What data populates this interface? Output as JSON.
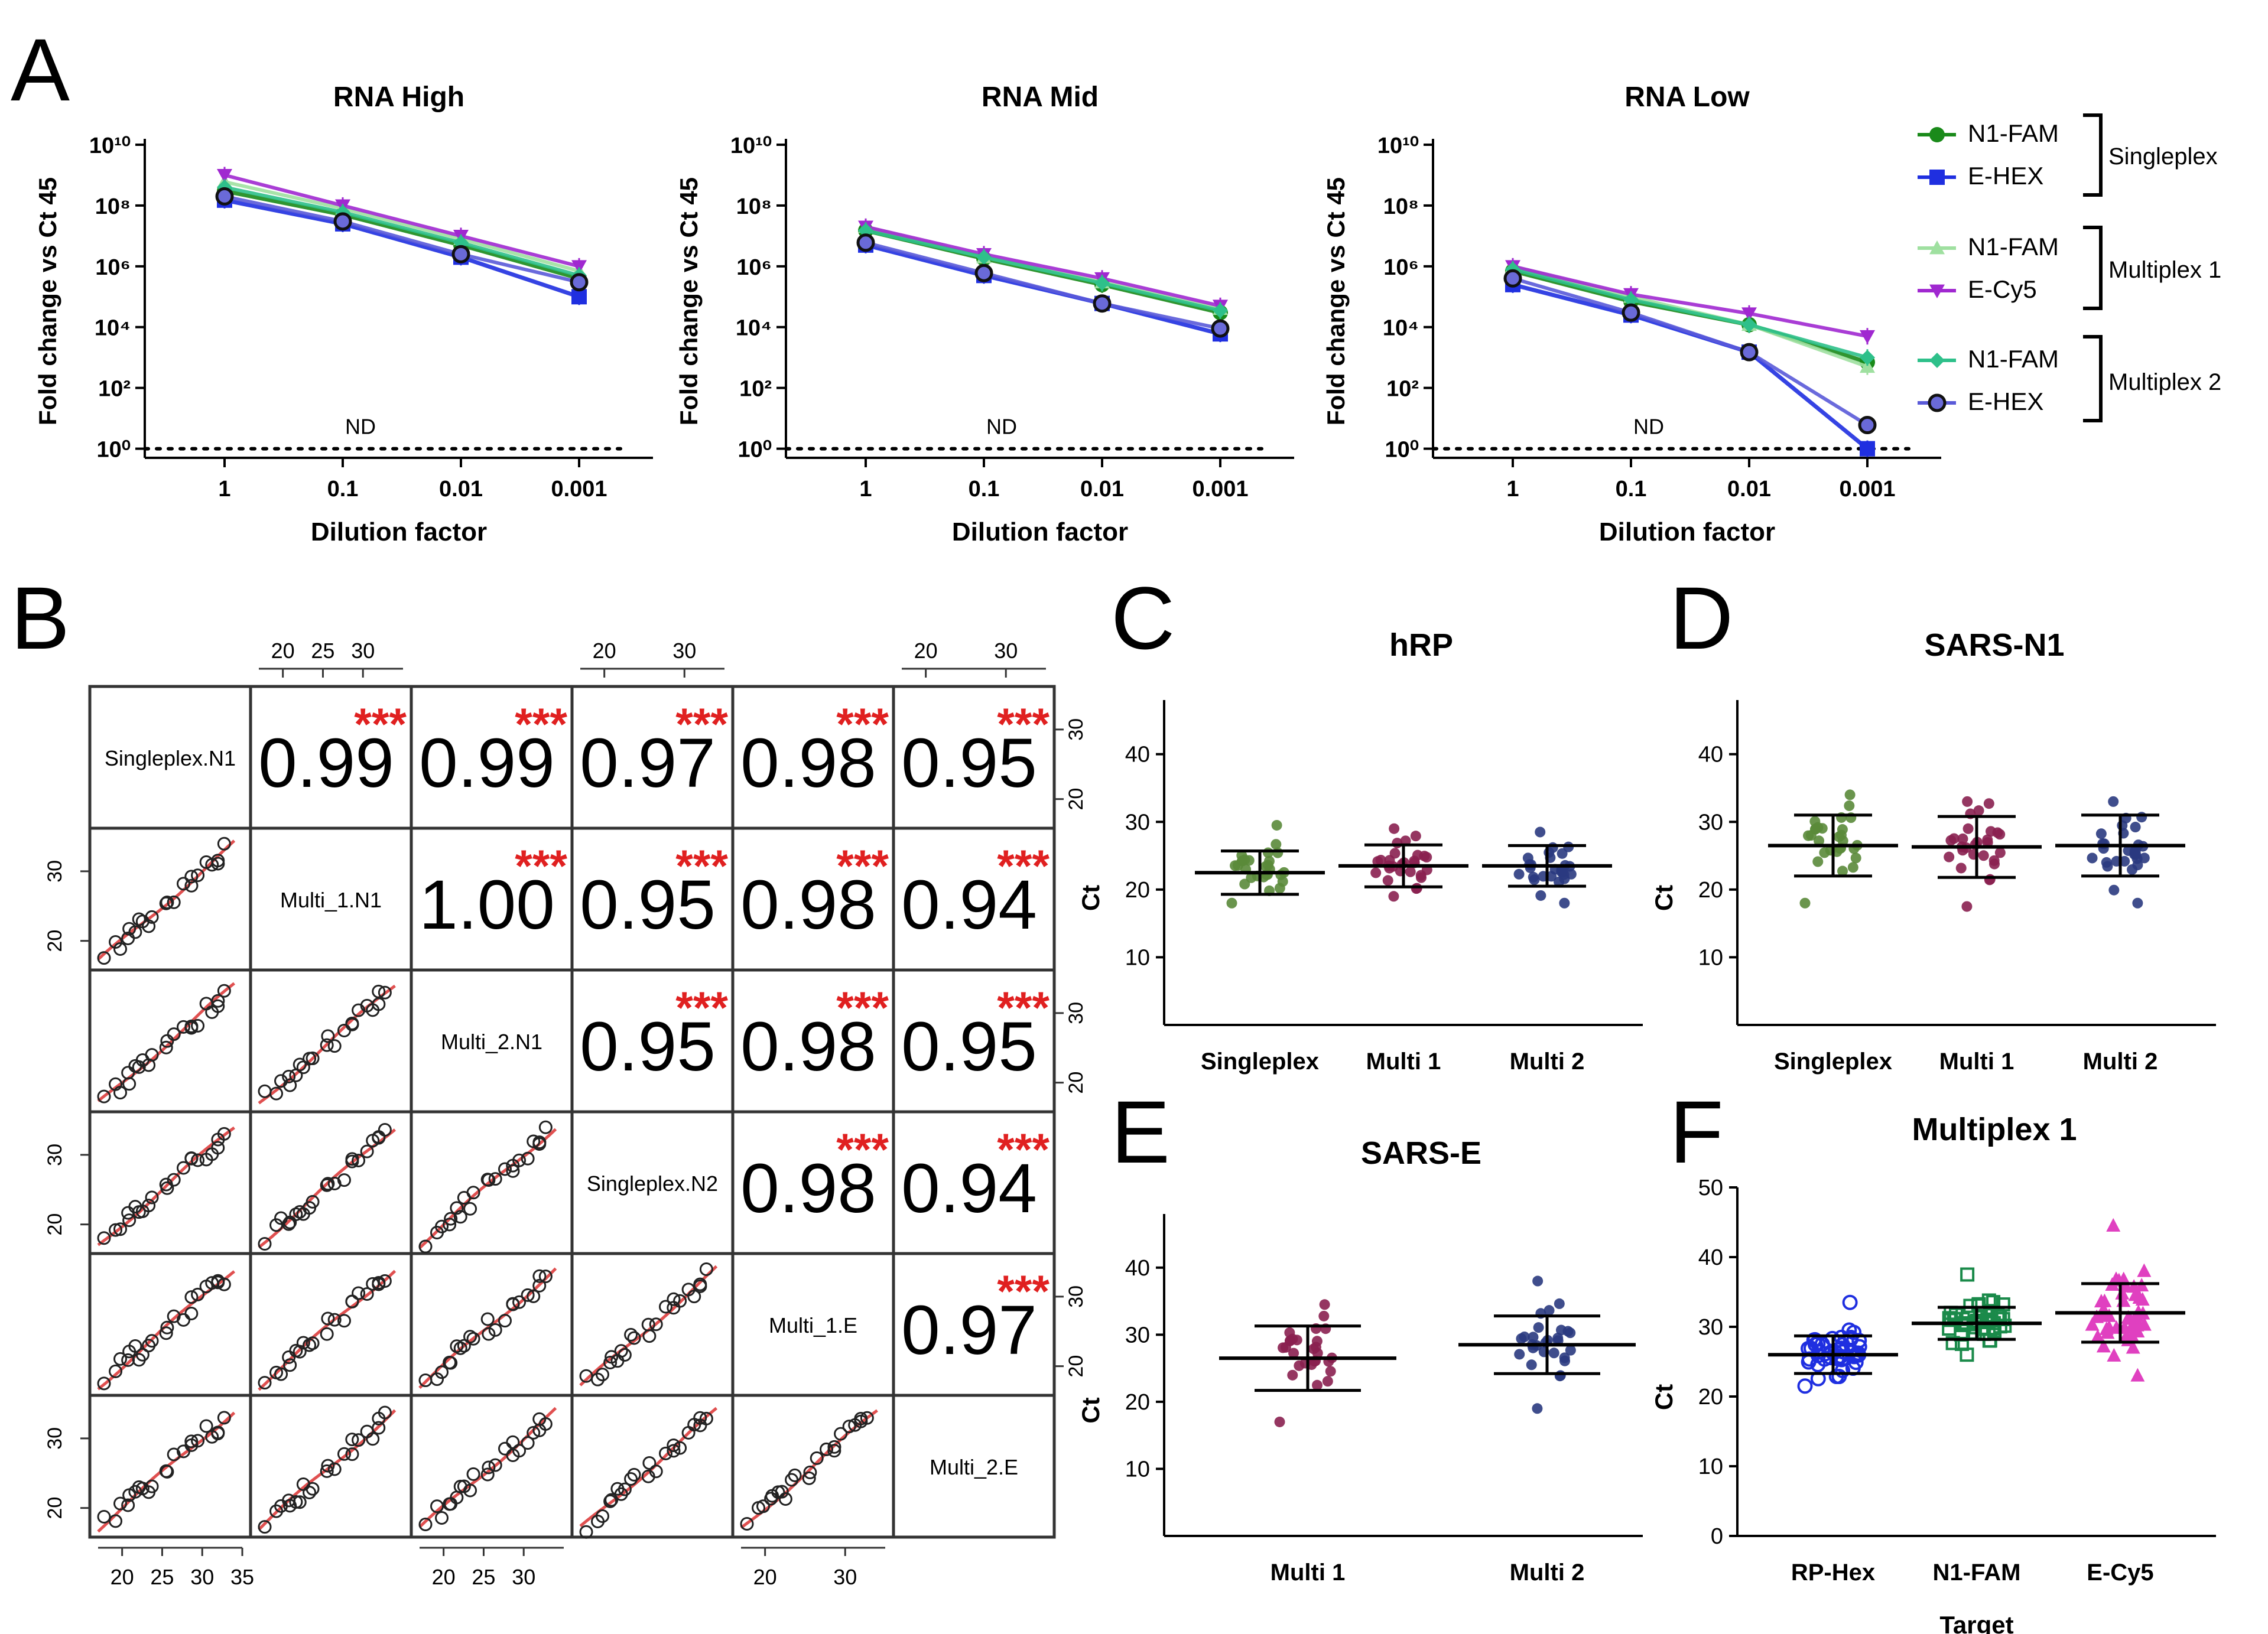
{
  "panel_letters": [
    "A",
    "B",
    "C",
    "D",
    "E",
    "F"
  ],
  "chart_data": [
    {
      "panel": "A",
      "type": "line",
      "title": "RNA High",
      "xlabel": "Dilution factor",
      "ylabel": "Fold change vs Ct 45",
      "categories": [
        "1",
        "0.1",
        "0.01",
        "0.001"
      ],
      "yscale": "log10",
      "ylim_exp": [
        -0.3,
        10
      ],
      "yticks_exp": [
        0,
        2,
        4,
        6,
        8,
        10
      ],
      "baseline": "1",
      "nd_label": "ND",
      "series": [
        {
          "name": "Singleplex N1-FAM",
          "values": [
            300000000.0,
            50000000.0,
            5000000.0,
            400000.0
          ]
        },
        {
          "name": "Singleplex E-HEX",
          "values": [
            150000000.0,
            25000000.0,
            2000000.0,
            100000.0
          ]
        },
        {
          "name": "Multiplex 1 N1-FAM",
          "values": [
            600000000.0,
            80000000.0,
            8000000.0,
            700000.0
          ]
        },
        {
          "name": "Multiplex 1 E-Cy5",
          "values": [
            1000000000.0,
            100000000.0,
            10000000.0,
            1000000.0
          ]
        },
        {
          "name": "Multiplex 2 N1-FAM",
          "values": [
            400000000.0,
            60000000.0,
            6000000.0,
            500000.0
          ]
        },
        {
          "name": "Multiplex 2 E-HEX",
          "values": [
            200000000.0,
            30000000.0,
            2500000.0,
            300000.0
          ]
        }
      ]
    },
    {
      "panel": "A",
      "type": "line",
      "title": "RNA Mid",
      "xlabel": "Dilution factor",
      "ylabel": "Fold change vs Ct 45",
      "categories": [
        "1",
        "0.1",
        "0.01",
        "0.001"
      ],
      "yscale": "log10",
      "ylim_exp": [
        -0.3,
        10
      ],
      "yticks_exp": [
        0,
        2,
        4,
        6,
        8,
        10
      ],
      "baseline": "1",
      "nd_label": "ND",
      "series": [
        {
          "name": "Singleplex N1-FAM",
          "values": [
            15000000.0,
            1800000.0,
            250000.0,
            30000.0
          ]
        },
        {
          "name": "Singleplex E-HEX",
          "values": [
            5000000.0,
            500000.0,
            60000.0,
            6000.0
          ]
        },
        {
          "name": "Multiplex 1 N1-FAM",
          "values": [
            20000000.0,
            2000000.0,
            300000.0,
            40000.0
          ]
        },
        {
          "name": "Multiplex 1 E-Cy5",
          "values": [
            20000000.0,
            2500000.0,
            400000.0,
            50000.0
          ]
        },
        {
          "name": "Multiplex 2 N1-FAM",
          "values": [
            15000000.0,
            2000000.0,
            280000.0,
            35000.0
          ]
        },
        {
          "name": "Multiplex 2 E-HEX",
          "values": [
            6000000.0,
            600000.0,
            60000.0,
            9000.0
          ]
        }
      ]
    },
    {
      "panel": "A",
      "type": "line",
      "title": "RNA Low",
      "xlabel": "Dilution factor",
      "ylabel": "Fold change vs Ct 45",
      "categories": [
        "1",
        "0.1",
        "0.01",
        "0.001"
      ],
      "yscale": "log10",
      "ylim_exp": [
        -0.3,
        10
      ],
      "yticks_exp": [
        0,
        2,
        4,
        6,
        8,
        10
      ],
      "baseline": "1",
      "nd_label": "ND",
      "series": [
        {
          "name": "Singleplex N1-FAM",
          "values": [
            700000.0,
            70000.0,
            12000.0,
            700
          ]
        },
        {
          "name": "Singleplex E-HEX",
          "values": [
            250000.0,
            25000.0,
            1500.0,
            1
          ]
        },
        {
          "name": "Multiplex 1 N1-FAM",
          "values": [
            1000000.0,
            100000.0,
            12000.0,
            500
          ]
        },
        {
          "name": "Multiplex 1 E-Cy5",
          "values": [
            1000000.0,
            120000.0,
            28000.0,
            5000.0
          ]
        },
        {
          "name": "Multiplex 2 N1-FAM",
          "values": [
            800000.0,
            80000.0,
            12000.0,
            1000.0
          ]
        },
        {
          "name": "Multiplex 2 E-HEX",
          "values": [
            400000.0,
            30000.0,
            1500.0,
            6
          ]
        }
      ]
    },
    {
      "panel": "B",
      "type": "scatter-matrix",
      "variables": [
        "Singleplex.N1",
        "Multi_1.N1",
        "Multi_2.N1",
        "Singleplex.N2",
        "Multi_1.E",
        "Multi_2.E"
      ],
      "correlations": [
        [
          null,
          "0.99",
          "0.99",
          "0.97",
          "0.98",
          "0.95"
        ],
        [
          null,
          null,
          "1.00",
          "0.95",
          "0.98",
          "0.94"
        ],
        [
          null,
          null,
          null,
          "0.95",
          "0.98",
          "0.95"
        ],
        [
          null,
          null,
          null,
          null,
          "0.98",
          "0.94"
        ],
        [
          null,
          null,
          null,
          null,
          null,
          "0.97"
        ]
      ],
      "significance": "***",
      "top_axis_ticks": [
        [
          "20",
          "25",
          "30"
        ],
        [
          "20",
          "30"
        ],
        [
          "20",
          "30"
        ]
      ],
      "bottom_axis_ticks": [
        [
          "20",
          "25",
          "30",
          "35"
        ],
        [
          "20",
          "25",
          "30"
        ],
        [
          "20",
          "30"
        ]
      ],
      "right_axis_ticks": [
        "20",
        "30"
      ],
      "left_axis_ticks": [
        "20",
        "30"
      ]
    },
    {
      "panel": "C",
      "type": "scatter",
      "title": "hRP",
      "ylabel": "Ct",
      "categories": [
        "Singleplex",
        "Multi 1",
        "Multi 2"
      ],
      "ylim": [
        0,
        48
      ],
      "yticks": [
        "10",
        "20",
        "30",
        "40"
      ],
      "mean": [
        22.5,
        23.5,
        23.5
      ],
      "sd": [
        3.2,
        3.1,
        3.0
      ],
      "range": [
        [
          18,
          29.5
        ],
        [
          19,
          29
        ],
        [
          18,
          28.5
        ]
      ],
      "n": 28
    },
    {
      "panel": "D",
      "type": "scatter",
      "title": "SARS-N1",
      "ylabel": "Ct",
      "categories": [
        "Singleplex",
        "Multi 1",
        "Multi 2"
      ],
      "ylim": [
        0,
        48
      ],
      "yticks": [
        "10",
        "20",
        "30",
        "40"
      ],
      "mean": [
        26.5,
        26.3,
        26.5
      ],
      "sd": [
        4.5,
        4.5,
        4.5
      ],
      "range": [
        [
          18,
          34
        ],
        [
          17.5,
          33
        ],
        [
          18,
          33
        ]
      ],
      "n": 28
    },
    {
      "panel": "E",
      "type": "scatter",
      "title": "SARS-E",
      "ylabel": "Ct",
      "categories": [
        "Multi 1",
        "Multi 2"
      ],
      "ylim": [
        0,
        48
      ],
      "yticks": [
        "10",
        "20",
        "30",
        "40"
      ],
      "mean": [
        26.5,
        28.5
      ],
      "sd": [
        4.8,
        4.3
      ],
      "range": [
        [
          17,
          34.5
        ],
        [
          19,
          38
        ]
      ],
      "n": 28
    },
    {
      "panel": "F",
      "type": "scatter",
      "title": "Multiplex 1",
      "ylabel": "Ct",
      "xlabel": "Target",
      "categories": [
        "RP-Hex",
        "N1-FAM",
        "E-Cy5"
      ],
      "ylim": [
        0,
        50
      ],
      "yticks": [
        "0",
        "10",
        "20",
        "30",
        "40",
        "50"
      ],
      "mean": [
        26,
        30.5,
        32
      ],
      "sd": [
        2.7,
        2.3,
        4.2
      ],
      "range": [
        [
          21.5,
          33.5
        ],
        [
          26,
          37.5
        ],
        [
          23,
          44.5
        ]
      ],
      "n": 48
    }
  ],
  "legend": {
    "entries": [
      "N1-FAM",
      "E-HEX",
      "N1-FAM",
      "E-Cy5",
      "N1-FAM",
      "E-HEX"
    ],
    "groups": [
      "Singleplex",
      "Multiplex 1",
      "Multiplex 2"
    ]
  },
  "colors": {
    "singleplex_n1": "#1a8a1a",
    "singleplex_e": "#1f2fe0",
    "multi1_n1": "#9fe0a0",
    "multi1_e": "#a028d0",
    "multi2_n1": "#2ec08a",
    "multi2_e": "#5a5ad8",
    "hrp_dots": "#5a8a3a",
    "multi1_dots": "#8a2050",
    "multi2_dots": "#2a3a80",
    "rp_hex": "#1f2fe0",
    "n1_fam": "#1a8a4a",
    "e_cy5": "#e040c0",
    "fit_line": "#e05050",
    "stars": "#e02020"
  }
}
